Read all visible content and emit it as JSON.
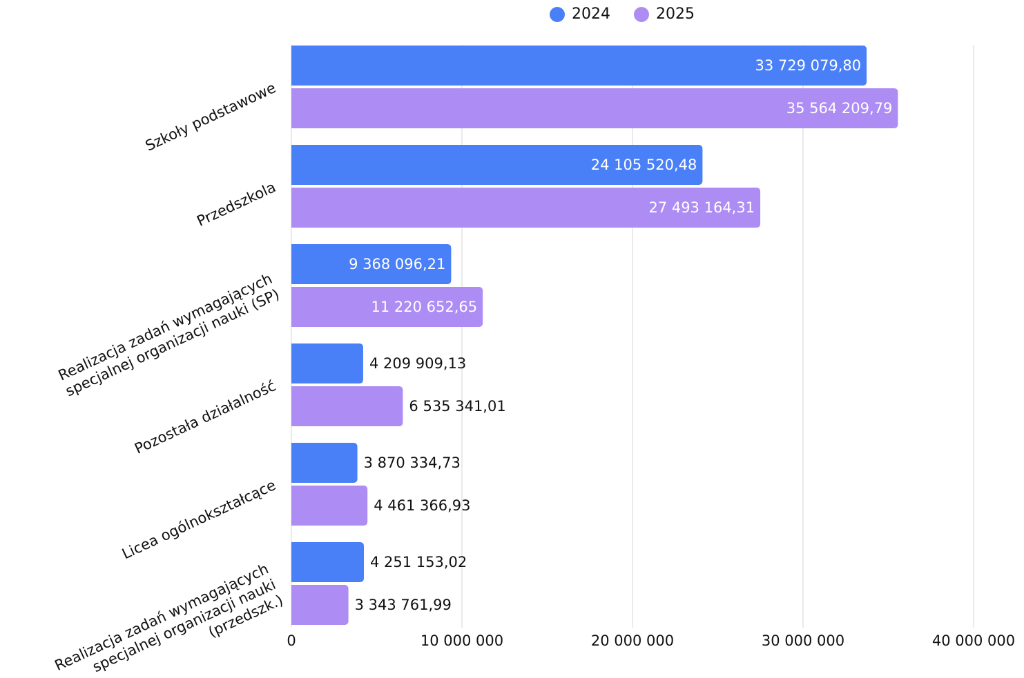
{
  "chart_data": {
    "type": "bar",
    "orientation": "horizontal",
    "categories": [
      [
        "Szkoły podstawowe"
      ],
      [
        "Przedszkola"
      ],
      [
        "Realizacja zadań wymagających",
        "specjalnej organizacji nauki (SP)"
      ],
      [
        "Pozostała działalność"
      ],
      [
        "Licea ogólnokształcące"
      ],
      [
        "Realizacja zadań wymagających",
        "specjalnej organizacji nauki",
        "(przedszk.)"
      ]
    ],
    "series": [
      {
        "name": "2024",
        "color": "#4a80f7",
        "values": [
          33729079.8,
          24105520.48,
          9368096.21,
          4209909.13,
          3870334.73,
          4251153.02
        ],
        "labels": [
          "33 729 079,80",
          "24 105 520,48",
          "9 368 096,21",
          "4 209 909,13",
          "3 870 334,73",
          "4 251 153,02"
        ]
      },
      {
        "name": "2025",
        "color": "#ad8cf4",
        "values": [
          35564209.79,
          27493164.31,
          11220652.65,
          6535341.01,
          4461366.93,
          3343761.99
        ],
        "labels": [
          "35 564 209,79",
          "27 493 164,31",
          "11 220 652,65",
          "6 535 341,01",
          "4 461 366,93",
          "3 343 761,99"
        ]
      }
    ],
    "xlim": [
      0,
      40000000
    ],
    "xticks": [
      0,
      10000000,
      20000000,
      30000000,
      40000000
    ],
    "xtick_labels": [
      "0",
      "10 000 000",
      "20 000 000",
      "30 000 000",
      "40 000 000"
    ],
    "grid": true,
    "legend_position": "top-center"
  }
}
